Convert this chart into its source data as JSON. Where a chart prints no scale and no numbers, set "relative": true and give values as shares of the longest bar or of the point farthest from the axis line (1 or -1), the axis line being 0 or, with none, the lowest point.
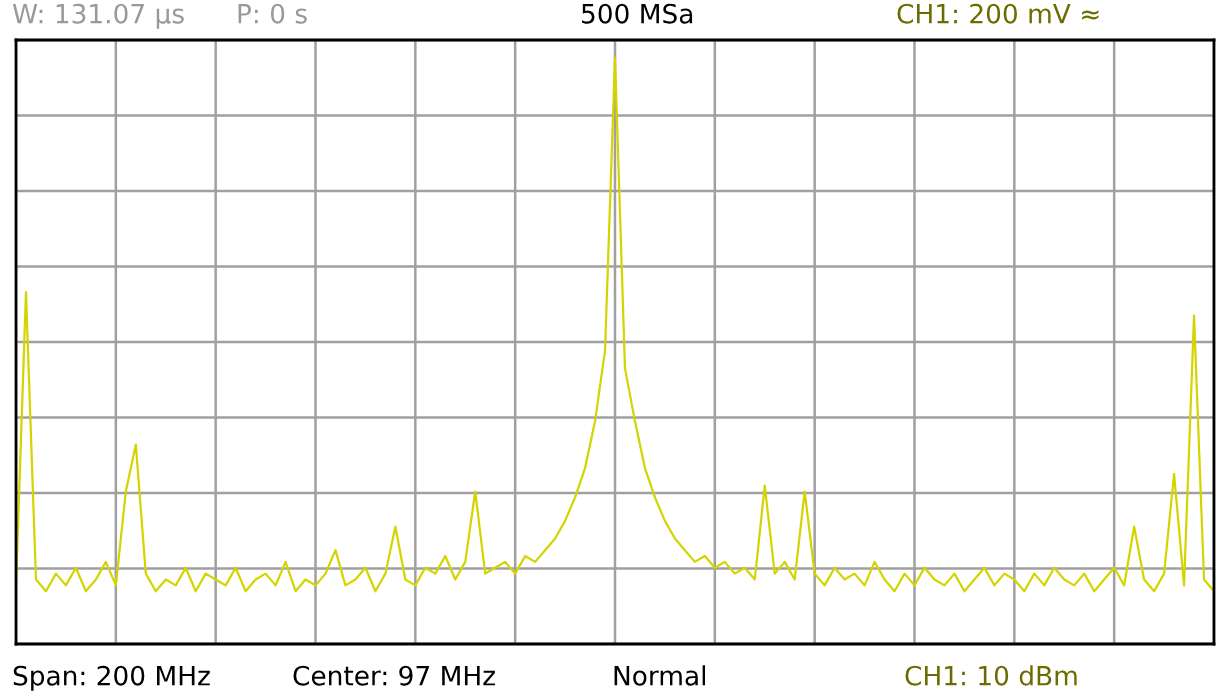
{
  "chart_data": {
    "type": "line",
    "relative": true,
    "categories": [
      null,
      null,
      null,
      null,
      null,
      null,
      null,
      null,
      null,
      null,
      null,
      null,
      null,
      null,
      null,
      null,
      null,
      null,
      null,
      null,
      null,
      null,
      null,
      null,
      null,
      null,
      null,
      null,
      null,
      null,
      null,
      null,
      null,
      null,
      null,
      null,
      null,
      null,
      null,
      null,
      null,
      null,
      null,
      null,
      null,
      null,
      null,
      null,
      null,
      null,
      null,
      null,
      null,
      null,
      null,
      null,
      null,
      null,
      null,
      null,
      null,
      null,
      null,
      null,
      null,
      null,
      null,
      null,
      null,
      null,
      null,
      null,
      null,
      null,
      null,
      null,
      null,
      null,
      null,
      null,
      null,
      null,
      null,
      null,
      null,
      null,
      null,
      null,
      null,
      null,
      null,
      null,
      null,
      null,
      null,
      null,
      null,
      null,
      null,
      null,
      null,
      null,
      null,
      null,
      null,
      null,
      null,
      null,
      null,
      null,
      null,
      null,
      null,
      null,
      null,
      null,
      null,
      null,
      null,
      null,
      null
    ],
    "series": [
      {
        "color": "#d4d400",
        "values": [
          0.1,
          0.6,
          0.11,
          0.09,
          0.12,
          0.1,
          0.13,
          0.09,
          0.11,
          0.14,
          0.1,
          0.26,
          0.34,
          0.12,
          0.09,
          0.11,
          0.1,
          0.13,
          0.09,
          0.12,
          0.11,
          0.1,
          0.13,
          0.09,
          0.11,
          0.12,
          0.1,
          0.14,
          0.09,
          0.11,
          0.1,
          0.12,
          0.16,
          0.1,
          0.11,
          0.13,
          0.09,
          0.12,
          0.2,
          0.11,
          0.1,
          0.13,
          0.12,
          0.15,
          0.11,
          0.14,
          0.26,
          0.12,
          0.13,
          0.14,
          0.12,
          0.15,
          0.14,
          0.16,
          0.18,
          0.21,
          0.25,
          0.3,
          0.38,
          0.5,
          1.0,
          0.47,
          0.38,
          0.3,
          0.25,
          0.21,
          0.18,
          0.16,
          0.14,
          0.15,
          0.13,
          0.14,
          0.12,
          0.13,
          0.11,
          0.27,
          0.12,
          0.14,
          0.11,
          0.26,
          0.12,
          0.1,
          0.13,
          0.11,
          0.12,
          0.1,
          0.14,
          0.11,
          0.09,
          0.12,
          0.1,
          0.13,
          0.11,
          0.1,
          0.12,
          0.09,
          0.11,
          0.13,
          0.1,
          0.12,
          0.11,
          0.09,
          0.12,
          0.1,
          0.13,
          0.11,
          0.1,
          0.12,
          0.09,
          0.11,
          0.13,
          0.1,
          0.2,
          0.11,
          0.09,
          0.12,
          0.29,
          0.1,
          0.56,
          0.11,
          0.09
        ]
      }
    ],
    "annotations": [
      "W: 131.07 µs",
      "P: 0 s",
      "500 MSa",
      "CH1: 200 mV ≈",
      "Span: 200 MHz",
      "Center: 97 MHz",
      "Normal",
      "CH1: 10 dBm"
    ],
    "grid": true,
    "tick_labels": false,
    "marker": "none",
    "line_style": "solid",
    "legend": false
  }
}
